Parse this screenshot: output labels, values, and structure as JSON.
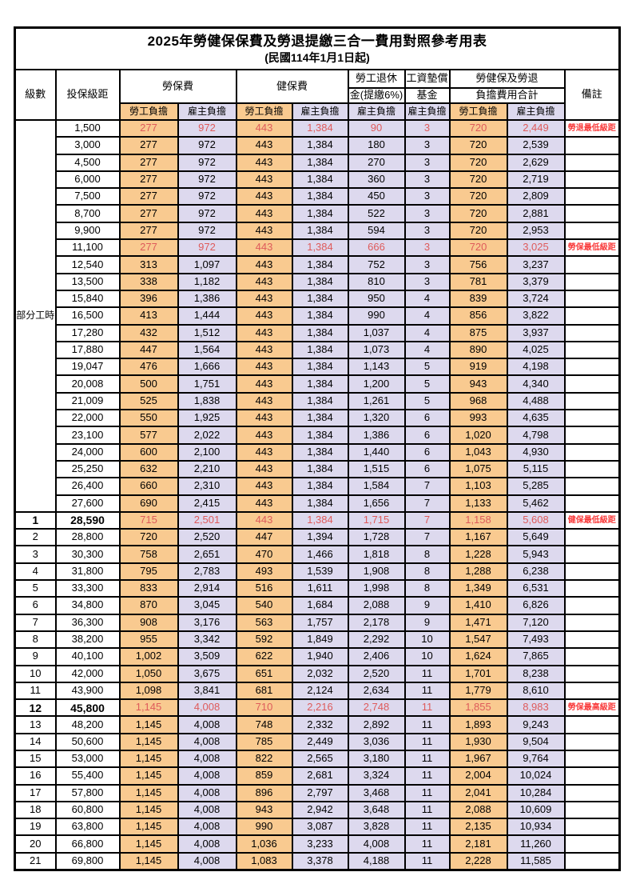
{
  "title": "2025年勞健保保費及勞退提繳三合一費用對照參考用表",
  "subtitle": "(民國114年1月1日起)",
  "header": {
    "level": "級數",
    "bracket": "投保級距",
    "labor_fee": "勞保費",
    "health_fee": "健保費",
    "pension_line1": "勞工退休",
    "pension_line2": "金(提繳6%)",
    "wage_fund_line1": "工資墊償",
    "wage_fund_line2": "基金",
    "total_line1": "勞健保及勞退",
    "total_line2": "負擔費用合計",
    "remark": "備註",
    "employee_share": "勞工負擔",
    "employer_share": "雇主負擔"
  },
  "part_time": {
    "label": "部分工時",
    "rowspan": 23
  },
  "colors": {
    "employee_bg": "#F9CA90",
    "employer_bg": "#DDD9EE",
    "data_red": "#DE5B5B",
    "remark_red": "#F93B3B",
    "border": "#000000"
  },
  "rows": [
    {
      "level": "",
      "bracket": "1,500",
      "fees": [
        "277",
        "972",
        "443",
        "1,384",
        "90",
        "3",
        "720",
        "2,449"
      ],
      "remark": "勞退最低級距",
      "red": true,
      "bold": false
    },
    {
      "level": "",
      "bracket": "3,000",
      "fees": [
        "277",
        "972",
        "443",
        "1,384",
        "180",
        "3",
        "720",
        "2,539"
      ],
      "remark": "",
      "red": false,
      "bold": false
    },
    {
      "level": "",
      "bracket": "4,500",
      "fees": [
        "277",
        "972",
        "443",
        "1,384",
        "270",
        "3",
        "720",
        "2,629"
      ],
      "remark": "",
      "red": false,
      "bold": false
    },
    {
      "level": "",
      "bracket": "6,000",
      "fees": [
        "277",
        "972",
        "443",
        "1,384",
        "360",
        "3",
        "720",
        "2,719"
      ],
      "remark": "",
      "red": false,
      "bold": false
    },
    {
      "level": "",
      "bracket": "7,500",
      "fees": [
        "277",
        "972",
        "443",
        "1,384",
        "450",
        "3",
        "720",
        "2,809"
      ],
      "remark": "",
      "red": false,
      "bold": false
    },
    {
      "level": "",
      "bracket": "8,700",
      "fees": [
        "277",
        "972",
        "443",
        "1,384",
        "522",
        "3",
        "720",
        "2,881"
      ],
      "remark": "",
      "red": false,
      "bold": false
    },
    {
      "level": "",
      "bracket": "9,900",
      "fees": [
        "277",
        "972",
        "443",
        "1,384",
        "594",
        "3",
        "720",
        "2,953"
      ],
      "remark": "",
      "red": false,
      "bold": false
    },
    {
      "level": "",
      "bracket": "11,100",
      "fees": [
        "277",
        "972",
        "443",
        "1,384",
        "666",
        "3",
        "720",
        "3,025"
      ],
      "remark": "勞保最低級距",
      "red": true,
      "bold": false
    },
    {
      "level": "",
      "bracket": "12,540",
      "fees": [
        "313",
        "1,097",
        "443",
        "1,384",
        "752",
        "3",
        "756",
        "3,237"
      ],
      "remark": "",
      "red": false,
      "bold": false
    },
    {
      "level": "",
      "bracket": "13,500",
      "fees": [
        "338",
        "1,182",
        "443",
        "1,384",
        "810",
        "3",
        "781",
        "3,379"
      ],
      "remark": "",
      "red": false,
      "bold": false
    },
    {
      "level": "",
      "bracket": "15,840",
      "fees": [
        "396",
        "1,386",
        "443",
        "1,384",
        "950",
        "4",
        "839",
        "3,724"
      ],
      "remark": "",
      "red": false,
      "bold": false
    },
    {
      "level": "",
      "bracket": "16,500",
      "fees": [
        "413",
        "1,444",
        "443",
        "1,384",
        "990",
        "4",
        "856",
        "3,822"
      ],
      "remark": "",
      "red": false,
      "bold": false
    },
    {
      "level": "",
      "bracket": "17,280",
      "fees": [
        "432",
        "1,512",
        "443",
        "1,384",
        "1,037",
        "4",
        "875",
        "3,937"
      ],
      "remark": "",
      "red": false,
      "bold": false
    },
    {
      "level": "",
      "bracket": "17,880",
      "fees": [
        "447",
        "1,564",
        "443",
        "1,384",
        "1,073",
        "4",
        "890",
        "4,025"
      ],
      "remark": "",
      "red": false,
      "bold": false
    },
    {
      "level": "",
      "bracket": "19,047",
      "fees": [
        "476",
        "1,666",
        "443",
        "1,384",
        "1,143",
        "5",
        "919",
        "4,198"
      ],
      "remark": "",
      "red": false,
      "bold": false
    },
    {
      "level": "",
      "bracket": "20,008",
      "fees": [
        "500",
        "1,751",
        "443",
        "1,384",
        "1,200",
        "5",
        "943",
        "4,340"
      ],
      "remark": "",
      "red": false,
      "bold": false
    },
    {
      "level": "",
      "bracket": "21,009",
      "fees": [
        "525",
        "1,838",
        "443",
        "1,384",
        "1,261",
        "5",
        "968",
        "4,488"
      ],
      "remark": "",
      "red": false,
      "bold": false
    },
    {
      "level": "",
      "bracket": "22,000",
      "fees": [
        "550",
        "1,925",
        "443",
        "1,384",
        "1,320",
        "6",
        "993",
        "4,635"
      ],
      "remark": "",
      "red": false,
      "bold": false
    },
    {
      "level": "",
      "bracket": "23,100",
      "fees": [
        "577",
        "2,022",
        "443",
        "1,384",
        "1,386",
        "6",
        "1,020",
        "4,798"
      ],
      "remark": "",
      "red": false,
      "bold": false
    },
    {
      "level": "",
      "bracket": "24,000",
      "fees": [
        "600",
        "2,100",
        "443",
        "1,384",
        "1,440",
        "6",
        "1,043",
        "4,930"
      ],
      "remark": "",
      "red": false,
      "bold": false
    },
    {
      "level": "",
      "bracket": "25,250",
      "fees": [
        "632",
        "2,210",
        "443",
        "1,384",
        "1,515",
        "6",
        "1,075",
        "5,115"
      ],
      "remark": "",
      "red": false,
      "bold": false
    },
    {
      "level": "",
      "bracket": "26,400",
      "fees": [
        "660",
        "2,310",
        "443",
        "1,384",
        "1,584",
        "7",
        "1,103",
        "5,285"
      ],
      "remark": "",
      "red": false,
      "bold": false
    },
    {
      "level": "",
      "bracket": "27,600",
      "fees": [
        "690",
        "2,415",
        "443",
        "1,384",
        "1,656",
        "7",
        "1,133",
        "5,462"
      ],
      "remark": "",
      "red": false,
      "bold": false
    },
    {
      "level": "1",
      "bracket": "28,590",
      "fees": [
        "715",
        "2,501",
        "443",
        "1,384",
        "1,715",
        "7",
        "1,158",
        "5,608"
      ],
      "remark": "健保最低級距",
      "red": true,
      "bold": true
    },
    {
      "level": "2",
      "bracket": "28,800",
      "fees": [
        "720",
        "2,520",
        "447",
        "1,394",
        "1,728",
        "7",
        "1,167",
        "5,649"
      ],
      "remark": "",
      "red": false,
      "bold": false
    },
    {
      "level": "3",
      "bracket": "30,300",
      "fees": [
        "758",
        "2,651",
        "470",
        "1,466",
        "1,818",
        "8",
        "1,228",
        "5,943"
      ],
      "remark": "",
      "red": false,
      "bold": false
    },
    {
      "level": "4",
      "bracket": "31,800",
      "fees": [
        "795",
        "2,783",
        "493",
        "1,539",
        "1,908",
        "8",
        "1,288",
        "6,238"
      ],
      "remark": "",
      "red": false,
      "bold": false
    },
    {
      "level": "5",
      "bracket": "33,300",
      "fees": [
        "833",
        "2,914",
        "516",
        "1,611",
        "1,998",
        "8",
        "1,349",
        "6,531"
      ],
      "remark": "",
      "red": false,
      "bold": false
    },
    {
      "level": "6",
      "bracket": "34,800",
      "fees": [
        "870",
        "3,045",
        "540",
        "1,684",
        "2,088",
        "9",
        "1,410",
        "6,826"
      ],
      "remark": "",
      "red": false,
      "bold": false
    },
    {
      "level": "7",
      "bracket": "36,300",
      "fees": [
        "908",
        "3,176",
        "563",
        "1,757",
        "2,178",
        "9",
        "1,471",
        "7,120"
      ],
      "remark": "",
      "red": false,
      "bold": false
    },
    {
      "level": "8",
      "bracket": "38,200",
      "fees": [
        "955",
        "3,342",
        "592",
        "1,849",
        "2,292",
        "10",
        "1,547",
        "7,493"
      ],
      "remark": "",
      "red": false,
      "bold": false
    },
    {
      "level": "9",
      "bracket": "40,100",
      "fees": [
        "1,002",
        "3,509",
        "622",
        "1,940",
        "2,406",
        "10",
        "1,624",
        "7,865"
      ],
      "remark": "",
      "red": false,
      "bold": false
    },
    {
      "level": "10",
      "bracket": "42,000",
      "fees": [
        "1,050",
        "3,675",
        "651",
        "2,032",
        "2,520",
        "11",
        "1,701",
        "8,238"
      ],
      "remark": "",
      "red": false,
      "bold": false
    },
    {
      "level": "11",
      "bracket": "43,900",
      "fees": [
        "1,098",
        "3,841",
        "681",
        "2,124",
        "2,634",
        "11",
        "1,779",
        "8,610"
      ],
      "remark": "",
      "red": false,
      "bold": false
    },
    {
      "level": "12",
      "bracket": "45,800",
      "fees": [
        "1,145",
        "4,008",
        "710",
        "2,216",
        "2,748",
        "11",
        "1,855",
        "8,983"
      ],
      "remark": "勞保最高級距",
      "red": true,
      "bold": true
    },
    {
      "level": "13",
      "bracket": "48,200",
      "fees": [
        "1,145",
        "4,008",
        "748",
        "2,332",
        "2,892",
        "11",
        "1,893",
        "9,243"
      ],
      "remark": "",
      "red": false,
      "bold": false
    },
    {
      "level": "14",
      "bracket": "50,600",
      "fees": [
        "1,145",
        "4,008",
        "785",
        "2,449",
        "3,036",
        "11",
        "1,930",
        "9,504"
      ],
      "remark": "",
      "red": false,
      "bold": false
    },
    {
      "level": "15",
      "bracket": "53,000",
      "fees": [
        "1,145",
        "4,008",
        "822",
        "2,565",
        "3,180",
        "11",
        "1,967",
        "9,764"
      ],
      "remark": "",
      "red": false,
      "bold": false
    },
    {
      "level": "16",
      "bracket": "55,400",
      "fees": [
        "1,145",
        "4,008",
        "859",
        "2,681",
        "3,324",
        "11",
        "2,004",
        "10,024"
      ],
      "remark": "",
      "red": false,
      "bold": false
    },
    {
      "level": "17",
      "bracket": "57,800",
      "fees": [
        "1,145",
        "4,008",
        "896",
        "2,797",
        "3,468",
        "11",
        "2,041",
        "10,284"
      ],
      "remark": "",
      "red": false,
      "bold": false
    },
    {
      "level": "18",
      "bracket": "60,800",
      "fees": [
        "1,145",
        "4,008",
        "943",
        "2,942",
        "3,648",
        "11",
        "2,088",
        "10,609"
      ],
      "remark": "",
      "red": false,
      "bold": false
    },
    {
      "level": "19",
      "bracket": "63,800",
      "fees": [
        "1,145",
        "4,008",
        "990",
        "3,087",
        "3,828",
        "11",
        "2,135",
        "10,934"
      ],
      "remark": "",
      "red": false,
      "bold": false
    },
    {
      "level": "20",
      "bracket": "66,800",
      "fees": [
        "1,145",
        "4,008",
        "1,036",
        "3,233",
        "4,008",
        "11",
        "2,181",
        "11,260"
      ],
      "remark": "",
      "red": false,
      "bold": false
    },
    {
      "level": "21",
      "bracket": "69,800",
      "fees": [
        "1,145",
        "4,008",
        "1,083",
        "3,378",
        "4,188",
        "11",
        "2,228",
        "11,585"
      ],
      "remark": "",
      "red": false,
      "bold": false
    }
  ]
}
